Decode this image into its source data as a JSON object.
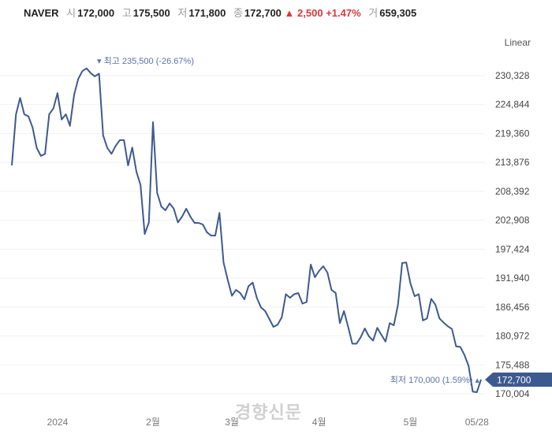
{
  "header": {
    "name": "NAVER",
    "open_label": "시",
    "open": "172,000",
    "high_label": "고",
    "high": "175,500",
    "low_label": "저",
    "low": "171,800",
    "close_label": "종",
    "close": "172,700",
    "change": "▲ 2,500",
    "change_pct": "+1.47%",
    "volume_label": "거",
    "volume": "659,305"
  },
  "scale_toggle": "Linear",
  "watermark": "경향신문",
  "chart_data": {
    "type": "line",
    "title": "NAVER",
    "ylim": [
      170004,
      230328
    ],
    "y_ticks": [
      "230,328",
      "224,844",
      "219,360",
      "213,876",
      "208,392",
      "202,908",
      "197,424",
      "191,940",
      "186,456",
      "180,972",
      "175,488",
      "170,004"
    ],
    "y_tick_values": [
      230328,
      224844,
      219360,
      213876,
      208392,
      202908,
      197424,
      191940,
      186456,
      180972,
      175488,
      170004
    ],
    "x_ticks": [
      {
        "label": "2024",
        "index": 11
      },
      {
        "label": "2월",
        "index": 34
      },
      {
        "label": "3월",
        "index": 53
      },
      {
        "label": "4월",
        "index": 74
      },
      {
        "label": "5월",
        "index": 96
      },
      {
        "label": "05/28",
        "index": 112
      }
    ],
    "max_annotation": "▾ 최고 235,500 (-26.67%)",
    "min_annotation": "최저 170,000 (1.59%) ▴",
    "last_price_label": "172,700",
    "color": "#3d5a8f",
    "values": [
      213300,
      223000,
      226100,
      223000,
      222600,
      220500,
      216600,
      215100,
      215500,
      223000,
      224100,
      227000,
      222000,
      223000,
      220800,
      226700,
      229700,
      231200,
      231700,
      230800,
      230200,
      230700,
      219000,
      216600,
      215500,
      217000,
      218100,
      218100,
      213300,
      216700,
      212100,
      209600,
      200300,
      202500,
      221500,
      208100,
      205500,
      204800,
      206100,
      205100,
      202500,
      203600,
      205100,
      203600,
      202400,
      202400,
      202100,
      200600,
      200000,
      200000,
      204300,
      194900,
      191600,
      188600,
      189700,
      189100,
      187900,
      190400,
      191100,
      188200,
      186400,
      185700,
      184200,
      182700,
      183100,
      184500,
      188900,
      188200,
      188900,
      189100,
      187100,
      187400,
      194500,
      192100,
      193300,
      194200,
      193000,
      189700,
      189100,
      183400,
      185700,
      182700,
      179500,
      179500,
      180700,
      182400,
      180900,
      180100,
      182500,
      181200,
      179900,
      183400,
      183000,
      186900,
      194800,
      194900,
      190900,
      188500,
      188900,
      183900,
      184300,
      188000,
      186900,
      184300,
      183500,
      182800,
      182300,
      179000,
      178900,
      177400,
      175300,
      170400,
      170300,
      172700
    ]
  }
}
